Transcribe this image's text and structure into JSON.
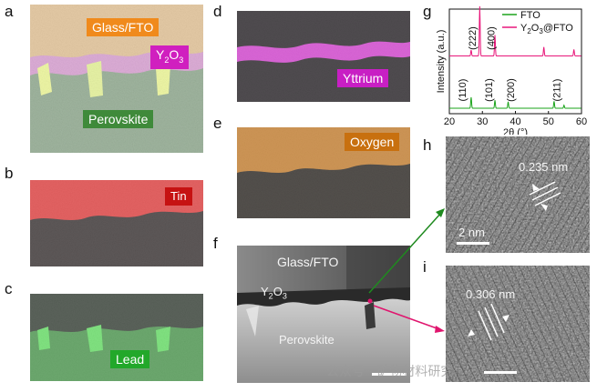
{
  "panel_letters": {
    "a": "a",
    "b": "b",
    "c": "c",
    "d": "d",
    "e": "e",
    "f": "f",
    "g": "g",
    "h": "h",
    "i": "i"
  },
  "map_labels": {
    "glass_fto": "Glass/FTO",
    "y2o3_base": "Y",
    "y2o3_sub": "2",
    "y2o3_tail": "O",
    "y2o3_sub2": "3",
    "perovskite": "Perovskite",
    "tin": "Tin",
    "lead": "Lead",
    "yttrium": "Yttrium",
    "oxygen": "Oxygen"
  },
  "tem_labels": {
    "glass_fto": "Glass/FTO",
    "y2o3_base": "Y",
    "y2o3_sub": "2",
    "y2o3_tail": "O",
    "y2o3_sub2": "3",
    "perovskite": "Perovskite"
  },
  "hrtem": {
    "h_spacing": "0.235 nm",
    "h_scale": "2 nm",
    "i_spacing": "0.306 nm"
  },
  "watermark": "公众号 · 矿物材料研究",
  "colors": {
    "glass_tag": "#f08a1c",
    "y2o3_tag": "#d01fbf",
    "perovskite_tag": "#3f8a3a",
    "tin_tag": "#d01818",
    "lead_tag": "#22a82a",
    "yttrium_tag": "#c81fc4",
    "oxygen_tag": "#c8700f",
    "fto_series": "#1aa31a",
    "y2o3_series": "#e8177a"
  },
  "chart_data": {
    "type": "line",
    "xlabel": "2θ (°)",
    "ylabel": "Intensity (a.u.)",
    "xlim": [
      20,
      60
    ],
    "xticks": [
      20,
      30,
      40,
      50,
      60
    ],
    "legend_position": "top-right",
    "series": [
      {
        "name": "FTO",
        "legend_parts": [
          "FTO"
        ],
        "offset": 0,
        "peaks": [
          [
            26.6,
            0.22
          ],
          [
            33.8,
            0.16
          ],
          [
            37.8,
            0.13
          ],
          [
            51.7,
            0.14
          ],
          [
            54.7,
            0.06
          ]
        ]
      },
      {
        "name": "Y2O3@FTO",
        "legend_parts": [
          "Y",
          "2",
          "O",
          "3",
          "@FTO"
        ],
        "offset": 1,
        "peaks": [
          [
            26.6,
            0.12
          ],
          [
            29.2,
            1.0
          ],
          [
            33.8,
            0.42
          ],
          [
            48.6,
            0.18
          ],
          [
            57.7,
            0.13
          ]
        ]
      }
    ],
    "annotations": [
      {
        "text": "(222)",
        "x": 28.0,
        "row": "upper"
      },
      {
        "text": "(400)",
        "x": 33.6,
        "row": "upper"
      },
      {
        "text": "(110)",
        "x": 25.0,
        "row": "lower"
      },
      {
        "text": "(101)",
        "x": 33.0,
        "row": "lower"
      },
      {
        "text": "(200)",
        "x": 39.6,
        "row": "lower"
      },
      {
        "text": "(211)",
        "x": 53.5,
        "row": "lower"
      }
    ]
  }
}
